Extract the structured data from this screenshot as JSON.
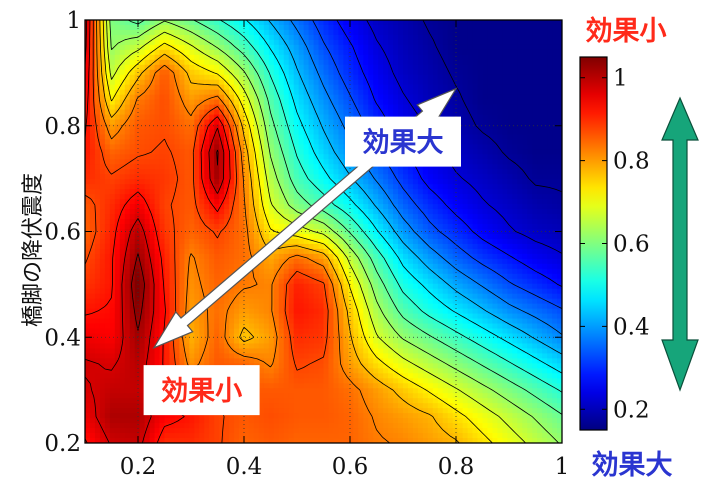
{
  "chart_data": {
    "type": "heatmap",
    "subtype": "filled-contour",
    "ylabel": "橋脚の降伏震度",
    "xlabel": "",
    "xlim": [
      0.1,
      1.0
    ],
    "ylim": [
      0.2,
      1.0
    ],
    "x_ticks": [
      "0.2",
      "0.4",
      "0.6",
      "0.8",
      "1"
    ],
    "y_ticks": [
      "0.2",
      "0.4",
      "0.6",
      "0.8",
      "1"
    ],
    "grid": true,
    "colormap": "jet",
    "colorbar": {
      "range": [
        0.15,
        1.05
      ],
      "ticks": [
        "0.2",
        "0.4",
        "0.6",
        "0.8",
        "1"
      ],
      "top_label": "効果小",
      "bottom_label": "効果大"
    },
    "grid_x": [
      0.1,
      0.15,
      0.2,
      0.25,
      0.3,
      0.35,
      0.4,
      0.45,
      0.5,
      0.55,
      0.6,
      0.65,
      0.7,
      0.75,
      0.8,
      0.85,
      0.9,
      0.95,
      1.0
    ],
    "grid_y": [
      0.2,
      0.25,
      0.3,
      0.35,
      0.4,
      0.45,
      0.5,
      0.55,
      0.6,
      0.65,
      0.7,
      0.75,
      0.8,
      0.85,
      0.9,
      0.95,
      1.0
    ],
    "z": [
      [
        0.92,
        0.98,
        0.99,
        0.9,
        0.9,
        0.88,
        0.85,
        0.86,
        0.85,
        0.85,
        0.85,
        0.83,
        0.82,
        0.8,
        0.78,
        0.74,
        0.7,
        0.66,
        0.62
      ],
      [
        0.95,
        1.01,
        1.01,
        0.94,
        0.92,
        0.88,
        0.86,
        0.87,
        0.86,
        0.86,
        0.85,
        0.82,
        0.8,
        0.78,
        0.74,
        0.7,
        0.66,
        0.62,
        0.58
      ],
      [
        0.97,
        0.99,
        0.99,
        0.93,
        0.87,
        0.87,
        0.86,
        0.86,
        0.86,
        0.86,
        0.84,
        0.8,
        0.76,
        0.72,
        0.68,
        0.64,
        0.6,
        0.56,
        0.52
      ],
      [
        0.98,
        0.97,
        1.0,
        0.92,
        0.81,
        0.86,
        0.85,
        0.82,
        0.88,
        0.87,
        0.8,
        0.74,
        0.69,
        0.65,
        0.61,
        0.57,
        0.53,
        0.49,
        0.45
      ],
      [
        0.95,
        0.94,
        1.02,
        0.92,
        0.78,
        0.85,
        0.76,
        0.8,
        0.9,
        0.89,
        0.78,
        0.68,
        0.62,
        0.58,
        0.54,
        0.5,
        0.46,
        0.42,
        0.38
      ],
      [
        0.92,
        0.93,
        1.04,
        0.93,
        0.8,
        0.84,
        0.8,
        0.82,
        0.92,
        0.9,
        0.76,
        0.64,
        0.56,
        0.51,
        0.47,
        0.43,
        0.39,
        0.36,
        0.33
      ],
      [
        0.89,
        0.92,
        1.06,
        0.92,
        0.81,
        0.85,
        0.83,
        0.82,
        0.91,
        0.88,
        0.72,
        0.6,
        0.51,
        0.46,
        0.41,
        0.37,
        0.33,
        0.3,
        0.27
      ],
      [
        0.87,
        0.92,
        1.03,
        0.91,
        0.82,
        0.86,
        0.84,
        0.79,
        0.84,
        0.8,
        0.66,
        0.55,
        0.46,
        0.4,
        0.35,
        0.31,
        0.28,
        0.25,
        0.23
      ],
      [
        0.85,
        0.91,
        1.0,
        0.89,
        0.85,
        0.88,
        0.84,
        0.73,
        0.7,
        0.66,
        0.57,
        0.48,
        0.4,
        0.34,
        0.3,
        0.26,
        0.23,
        0.21,
        0.2
      ],
      [
        0.86,
        0.9,
        0.95,
        0.88,
        0.86,
        0.94,
        0.83,
        0.68,
        0.6,
        0.55,
        0.49,
        0.42,
        0.35,
        0.3,
        0.26,
        0.23,
        0.21,
        0.19,
        0.18
      ],
      [
        0.9,
        0.88,
        0.9,
        0.89,
        0.86,
        1.02,
        0.82,
        0.65,
        0.55,
        0.49,
        0.43,
        0.37,
        0.31,
        0.26,
        0.23,
        0.21,
        0.19,
        0.17,
        0.17
      ],
      [
        0.92,
        0.85,
        0.87,
        0.88,
        0.86,
        1.03,
        0.8,
        0.62,
        0.52,
        0.45,
        0.39,
        0.33,
        0.28,
        0.24,
        0.21,
        0.19,
        0.17,
        0.16,
        0.16
      ],
      [
        0.93,
        0.8,
        0.86,
        0.87,
        0.84,
        0.97,
        0.76,
        0.59,
        0.49,
        0.42,
        0.36,
        0.3,
        0.25,
        0.22,
        0.19,
        0.17,
        0.16,
        0.16,
        0.16
      ],
      [
        0.95,
        0.72,
        0.83,
        0.87,
        0.8,
        0.84,
        0.7,
        0.56,
        0.46,
        0.39,
        0.33,
        0.27,
        0.23,
        0.2,
        0.18,
        0.16,
        0.16,
        0.16,
        0.16
      ],
      [
        0.97,
        0.66,
        0.76,
        0.86,
        0.76,
        0.72,
        0.63,
        0.52,
        0.43,
        0.36,
        0.3,
        0.25,
        0.21,
        0.19,
        0.17,
        0.16,
        0.16,
        0.16,
        0.16
      ],
      [
        0.99,
        0.62,
        0.66,
        0.74,
        0.68,
        0.62,
        0.55,
        0.47,
        0.4,
        0.33,
        0.28,
        0.23,
        0.2,
        0.18,
        0.16,
        0.16,
        0.16,
        0.16,
        0.16
      ],
      [
        1.0,
        0.6,
        0.56,
        0.62,
        0.58,
        0.53,
        0.48,
        0.42,
        0.36,
        0.3,
        0.25,
        0.21,
        0.19,
        0.17,
        0.16,
        0.16,
        0.16,
        0.16,
        0.16
      ]
    ],
    "annotations": [
      {
        "text": "効果大",
        "x": 0.7,
        "y": 0.77,
        "color": "#2a35d0",
        "background": "#ffffff"
      },
      {
        "text": "効果小",
        "x": 0.32,
        "y": 0.3,
        "color": "#ff2a1a",
        "background": "#ffffff"
      }
    ],
    "double_arrow": {
      "from": [
        0.23,
        0.38
      ],
      "to": [
        0.8,
        0.87
      ],
      "fill": "#ffffff"
    },
    "side_arrow_color": "#16a57a"
  }
}
